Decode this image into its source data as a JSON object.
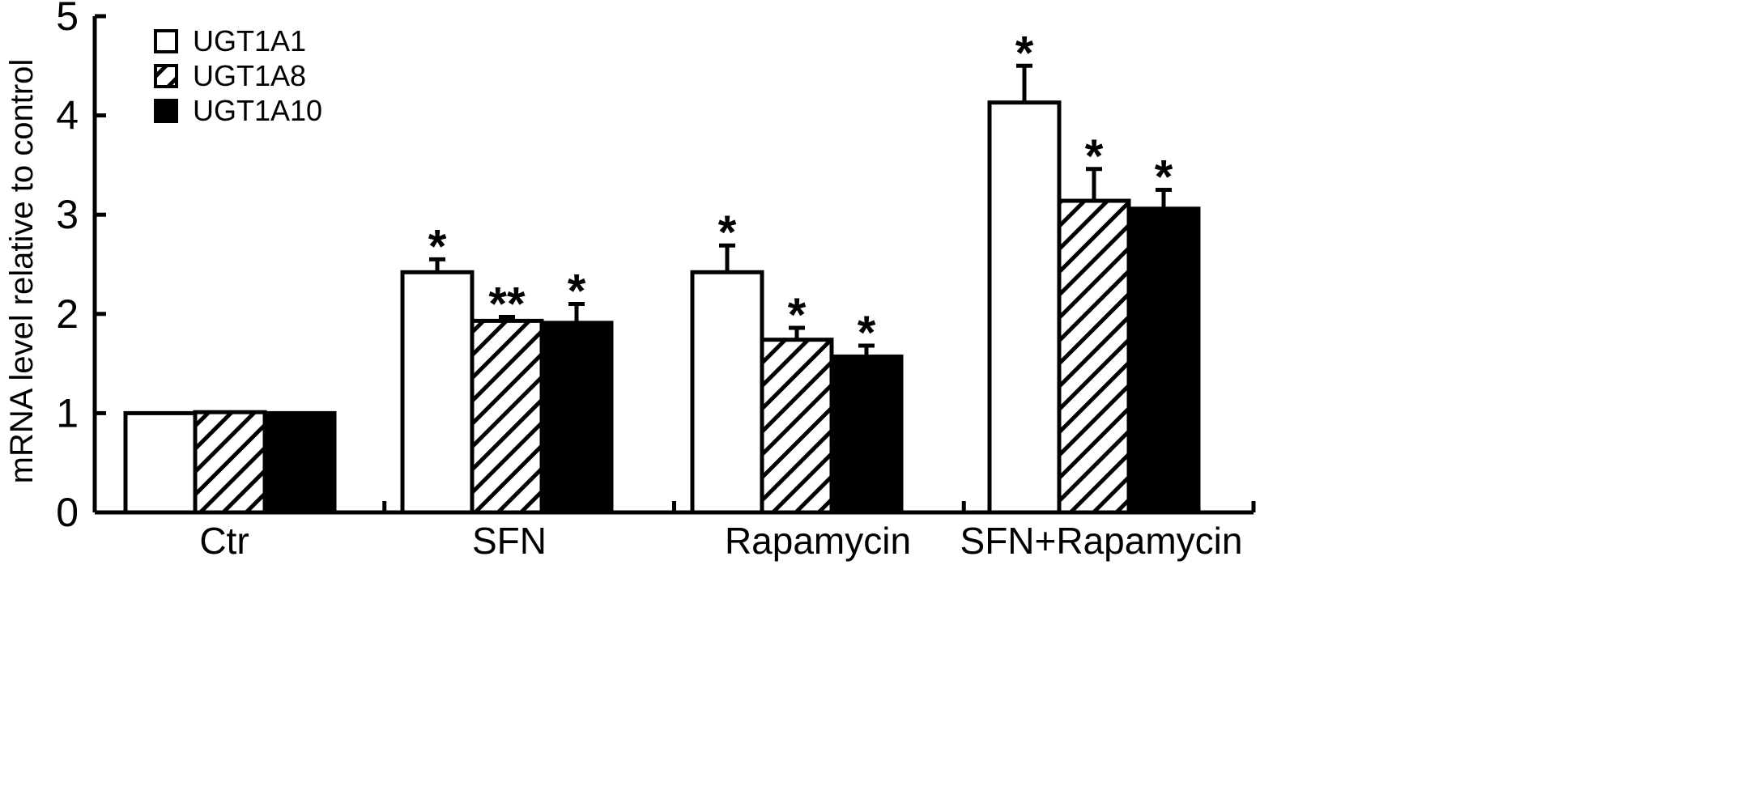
{
  "chart_data": {
    "type": "bar",
    "ylabel": "mRNA level relative to control",
    "xlabel": "",
    "ylim": [
      0,
      5
    ],
    "yticks": [
      "0",
      "1",
      "2",
      "3",
      "4",
      "5"
    ],
    "categories": [
      "Ctr",
      "SFN",
      "Rapamycin",
      "SFN+Rapamycin"
    ],
    "legend_position": "top-left",
    "grid": false,
    "series": [
      {
        "name": "UGT1A1",
        "fill": "white",
        "values": [
          1.0,
          2.42,
          2.42,
          4.13
        ],
        "errors": [
          0.0,
          0.13,
          0.27,
          0.37
        ],
        "significance": [
          "",
          "*",
          "*",
          "*"
        ]
      },
      {
        "name": "UGT1A8",
        "fill": "hatched",
        "values": [
          1.01,
          1.93,
          1.74,
          3.14
        ],
        "errors": [
          0.0,
          0.04,
          0.12,
          0.32
        ],
        "significance": [
          "",
          "**",
          "*",
          "*"
        ]
      },
      {
        "name": "UGT1A10",
        "fill": "black",
        "values": [
          1.0,
          1.91,
          1.57,
          3.06
        ],
        "errors": [
          0.0,
          0.19,
          0.11,
          0.19
        ],
        "significance": [
          "",
          "*",
          "*",
          "*"
        ]
      }
    ]
  }
}
